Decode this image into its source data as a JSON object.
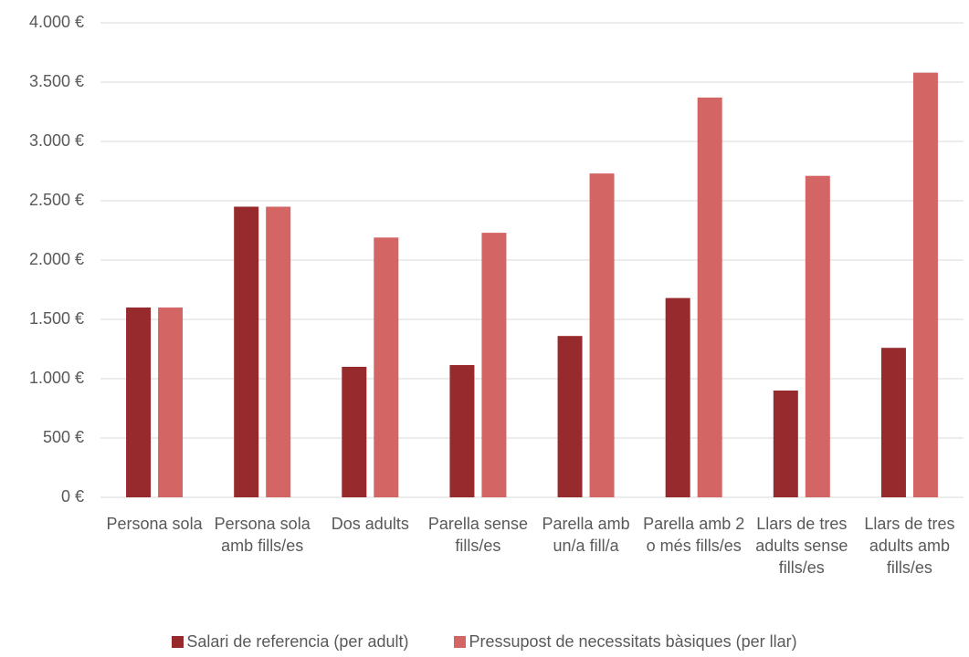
{
  "chart_data": {
    "type": "bar",
    "categories": [
      "Persona sola",
      "Persona sola amb fills/es",
      "Dos adults",
      "Parella sense fills/es",
      "Parella amb un/a fill/a",
      "Parella amb 2 o més fills/es",
      "Llars de tres adults sense fills/es",
      "Llars de tres adults amb fills/es"
    ],
    "series": [
      {
        "name": "Salari de referencia (per adult)",
        "color": "#962a2d",
        "values": [
          1600,
          2450,
          1100,
          1115,
          1360,
          1680,
          900,
          1260
        ]
      },
      {
        "name": "Pressupost de necessitats bàsiques (per llar)",
        "color": "#d46565",
        "values": [
          1600,
          2450,
          2190,
          2230,
          2730,
          3370,
          2710,
          3580
        ]
      }
    ],
    "ylim": [
      0,
      4000
    ],
    "yticks": [
      {
        "value": 0,
        "label": "0 €"
      },
      {
        "value": 500,
        "label": "500 €"
      },
      {
        "value": 1000,
        "label": "1.000 €"
      },
      {
        "value": 1500,
        "label": "1.500 €"
      },
      {
        "value": 2000,
        "label": "2.000 €"
      },
      {
        "value": 2500,
        "label": "2.500 €"
      },
      {
        "value": 3000,
        "label": "3.000 €"
      },
      {
        "value": 3500,
        "label": "3.500 €"
      },
      {
        "value": 4000,
        "label": "4.000 €"
      }
    ],
    "grid": true,
    "legend": "bottom"
  }
}
